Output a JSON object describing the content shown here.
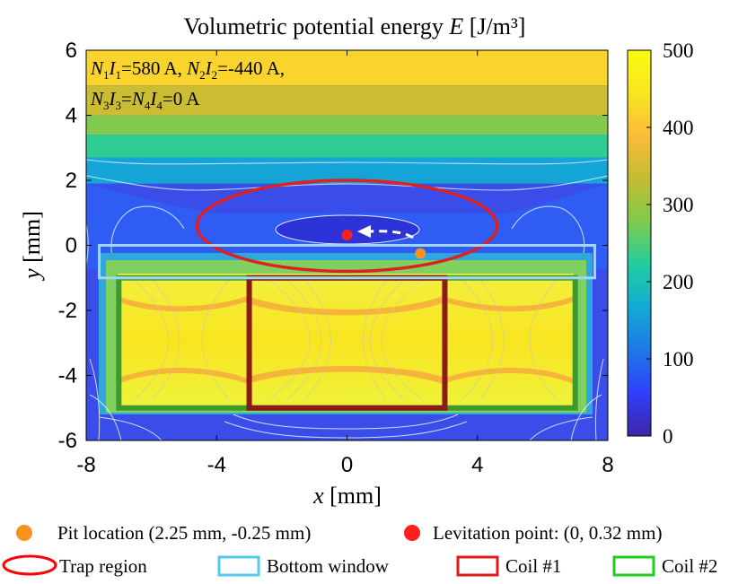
{
  "chart_data": {
    "type": "heatmap",
    "title_main": "Volumetric potential energy ",
    "title_var": "E",
    "title_unit": " [J/m³]",
    "xlabel_var": "x",
    "xlabel_unit": " [mm]",
    "ylabel_var": "y",
    "ylabel_unit": " [mm]",
    "xlim": [
      -8,
      8
    ],
    "ylim": [
      -6,
      6
    ],
    "xticks": [
      -8,
      -4,
      0,
      4,
      8
    ],
    "yticks": [
      6,
      4,
      2,
      0,
      -2,
      -4,
      -6
    ],
    "colorbar": {
      "min": 0,
      "max": 500,
      "ticks": [
        500,
        400,
        300,
        200,
        100,
        0
      ],
      "colors": [
        "#3e26a8",
        "#2f3ffb",
        "#1f77e8",
        "#14aad4",
        "#22cc9f",
        "#7fcb4f",
        "#c3bc32",
        "#fbbb3a",
        "#f9e521",
        "#f9fb0e"
      ]
    },
    "annotation": {
      "line1": {
        "n1": "N",
        "s1": "1",
        "i1": "I",
        "s2": "1",
        "mid": "=580 A, ",
        "n2": "N",
        "s3": "2",
        "i2": "I",
        "s4": "2",
        "end": "=-440 A,"
      },
      "line2": {
        "n1": "N",
        "s1": "3",
        "i1": "I",
        "s2": "3",
        "eq": "=",
        "n2": "N",
        "s3": "4",
        "i2": "I",
        "s4": "4",
        "end": "=0 A"
      }
    },
    "background_bands": [
      {
        "y_from": 4.92,
        "y_to": 6.0,
        "value": 420
      },
      {
        "y_from": 4.0,
        "y_to": 4.92,
        "value": 340
      },
      {
        "y_from": 3.4,
        "y_to": 4.0,
        "value": 280
      },
      {
        "y_from": 2.7,
        "y_to": 3.4,
        "value": 230
      },
      {
        "y_from": 1.9,
        "y_to": 2.7,
        "value": 160
      }
    ],
    "pit": {
      "x": 2.25,
      "y": -0.25,
      "color": "#f7931e"
    },
    "levitation": {
      "x": 0,
      "y": 0.32,
      "color": "#ff1f1f"
    },
    "trap_region": {
      "cx": 0,
      "cy": 0.6,
      "rx": 4.6,
      "ry": 1.4,
      "color": "#e01f1f"
    },
    "bottom_window": {
      "x0": -7.6,
      "x1": 7.6,
      "y0": -1.0,
      "y1": 0.0,
      "color": "#9fd8f5"
    },
    "coil1": {
      "x0": -3.0,
      "x1": 3.0,
      "y0": -5.0,
      "y1": -1.0,
      "color": "#8b1a1a"
    },
    "coil2": {
      "x0": -7.0,
      "x1": 7.0,
      "y0": -5.0,
      "y1": -1.0,
      "color": "#3f9a2e"
    }
  },
  "legend": {
    "pit_label": "Pit location (2.25 mm, -0.25 mm)",
    "levitation_label": "Levitation point: (0, 0.32 mm)",
    "trap_label": "Trap region",
    "window_label": "Bottom window",
    "coil1_label": "Coil #1",
    "coil2_label": "Coil #2",
    "pit_color": "#f7931e",
    "levitation_color": "#ff1f1f",
    "trap_color": "#ff0000",
    "window_color": "#55c8f0",
    "coil1_color": "#e01a1a",
    "coil2_color": "#22cc22"
  }
}
